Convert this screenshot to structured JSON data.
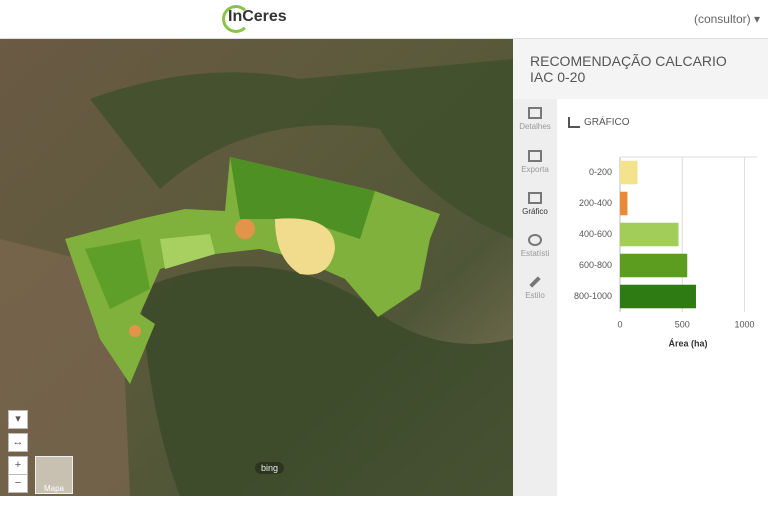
{
  "header": {
    "logo": "InCeres",
    "user": "(consultor)"
  },
  "panel": {
    "title": "RECOMENDAÇÃO CALCARIO IAC 0-20",
    "section": "GRÁFICO",
    "tabs": [
      "Detalhes",
      "Exporta",
      "Gráfico",
      "Estatísti",
      "Estilo"
    ]
  },
  "map": {
    "layer_button": "Mapa",
    "attribution": "bing"
  },
  "chart_data": {
    "type": "hbar",
    "x_label": "Área (ha)",
    "categories": [
      "0-200",
      "200-400",
      "400-600",
      "600-800",
      "800-1000"
    ],
    "values": [
      140,
      60,
      470,
      540,
      610
    ],
    "colors": [
      "#f3e38c",
      "#e9893a",
      "#a1cd58",
      "#5c9d1f",
      "#2f7b13"
    ],
    "xlim": [
      0,
      1100
    ],
    "xticks": [
      0,
      500,
      1000
    ],
    "grid": true
  }
}
